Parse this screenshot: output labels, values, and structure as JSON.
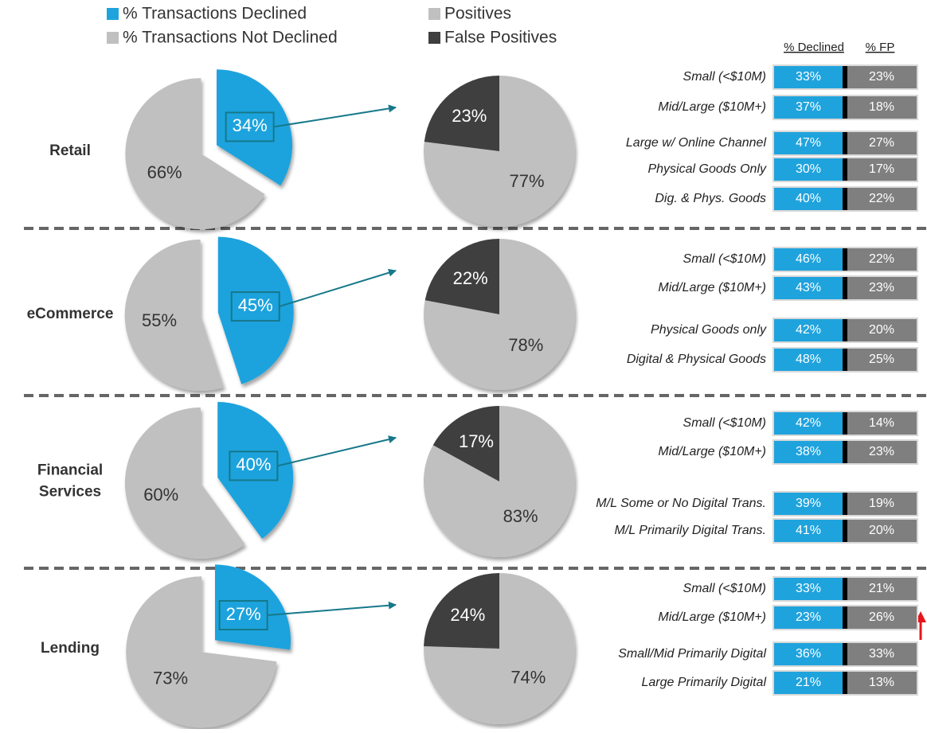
{
  "legend": [
    {
      "name": "% Transactions Declined",
      "color": "#1fa3dd"
    },
    {
      "name": "% Transactions Not Declined",
      "color": "#c0c0c0"
    },
    {
      "name": "Positives",
      "color": "#c0c0c0"
    },
    {
      "name": "False Positives",
      "color": "#3f3f3f"
    }
  ],
  "table_header": [
    "% Declined",
    "% FP"
  ],
  "sections": [
    {
      "label_lines": [
        "Retail"
      ],
      "declined": {
        "values": [
          34,
          66
        ],
        "value_labels": [
          "34%",
          "66%"
        ]
      },
      "false_positives": {
        "values": [
          23,
          77
        ],
        "value_labels": [
          "23%",
          "77%"
        ]
      },
      "segments": [
        {
          "name": "Small (<$10M)",
          "declined": "33%",
          "fp": "23%"
        },
        {
          "name": "Mid/Large ($10M+)",
          "declined": "37%",
          "fp": "18%"
        },
        {
          "name": "Large w/ Online Channel",
          "declined": "47%",
          "fp": "27%"
        },
        {
          "name": "Physical Goods Only",
          "declined": "30%",
          "fp": "17%"
        },
        {
          "name": "Dig. & Phys. Goods",
          "declined": "40%",
          "fp": "22%"
        }
      ]
    },
    {
      "label_lines": [
        "eCommerce"
      ],
      "declined": {
        "values": [
          45,
          55
        ],
        "value_labels": [
          "45%",
          "55%"
        ]
      },
      "false_positives": {
        "values": [
          22,
          78
        ],
        "value_labels": [
          "22%",
          "78%"
        ]
      },
      "segments": [
        {
          "name": "Small (<$10M)",
          "declined": "46%",
          "fp": "22%"
        },
        {
          "name": "Mid/Large ($10M+)",
          "declined": "43%",
          "fp": "23%"
        },
        {
          "name": "Physical Goods only",
          "declined": "42%",
          "fp": "20%"
        },
        {
          "name": "Digital & Physical Goods",
          "declined": "48%",
          "fp": "25%"
        }
      ]
    },
    {
      "label_lines": [
        "Financial",
        "Services"
      ],
      "declined": {
        "values": [
          40,
          60
        ],
        "value_labels": [
          "40%",
          "60%"
        ]
      },
      "false_positives": {
        "values": [
          17,
          83
        ],
        "value_labels": [
          "17%",
          "83%"
        ]
      },
      "segments": [
        {
          "name": "Small (<$10M)",
          "declined": "42%",
          "fp": "14%"
        },
        {
          "name": "Mid/Large ($10M+)",
          "declined": "38%",
          "fp": "23%"
        },
        {
          "name": "M/L Some or No Digital Trans.",
          "declined": "39%",
          "fp": "19%"
        },
        {
          "name": "M/L Primarily Digital Trans.",
          "declined": "41%",
          "fp": "20%"
        }
      ]
    },
    {
      "label_lines": [
        "Lending"
      ],
      "declined": {
        "values": [
          27,
          73
        ],
        "value_labels": [
          "27%",
          "73%"
        ]
      },
      "false_positives": {
        "values": [
          24,
          74
        ],
        "value_labels": [
          "24%",
          "74%"
        ]
      },
      "segments": [
        {
          "name": "Small (<$10M)",
          "declined": "33%",
          "fp": "21%"
        },
        {
          "name": "Mid/Large ($10M+)",
          "declined": "23%",
          "fp": "26%"
        },
        {
          "name": "Small/Mid Primarily Digital",
          "declined": "36%",
          "fp": "33%"
        },
        {
          "name": "Large Primarily Digital",
          "declined": "21%",
          "fp": "13%"
        }
      ]
    }
  ]
}
